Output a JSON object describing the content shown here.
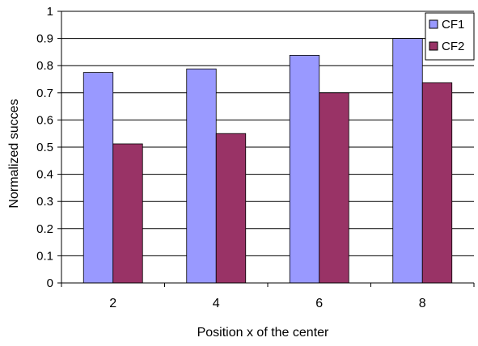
{
  "chart_data": {
    "type": "bar",
    "title": "",
    "xlabel": "Position x of the center",
    "ylabel": "Normalized succes",
    "categories": [
      "2",
      "4",
      "6",
      "8"
    ],
    "ylim": [
      0,
      1
    ],
    "yticks": [
      "0",
      "0.1",
      "0.2",
      "0.3",
      "0.4",
      "0.5",
      "0.6",
      "0.7",
      "0.8",
      "0.9",
      "1"
    ],
    "grid": true,
    "legend": {
      "placement": "top-right"
    },
    "series": [
      {
        "name": "CF1",
        "color": "#9999ff",
        "values": [
          0.775,
          0.788,
          0.838,
          0.9
        ]
      },
      {
        "name": "CF2",
        "color": "#993366",
        "values": [
          0.512,
          0.55,
          0.7,
          0.737
        ]
      }
    ]
  }
}
